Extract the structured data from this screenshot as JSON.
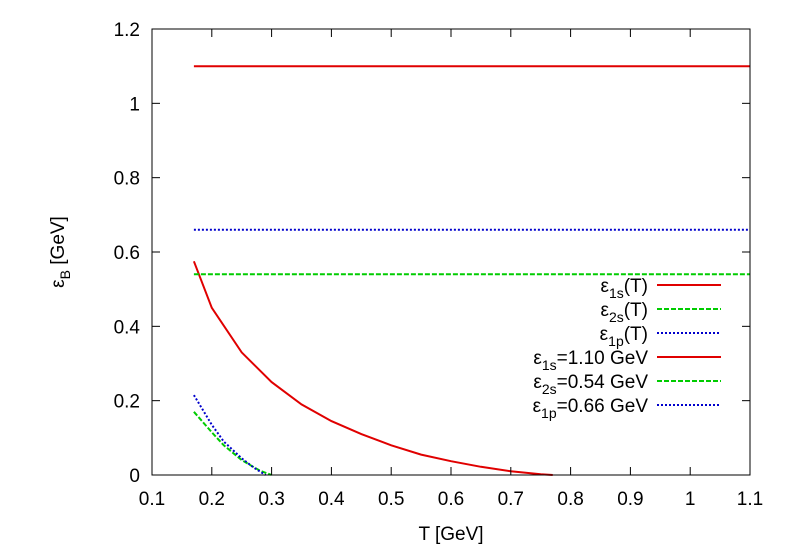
{
  "chart_data": {
    "type": "line",
    "xlabel": "T [GeV]",
    "ylabel": {
      "main": "ε",
      "sub": "B",
      "rest": " [GeV]"
    },
    "xlim": [
      0.1,
      1.1
    ],
    "ylim": [
      0,
      1.2
    ],
    "x_ticks": [
      "0.1",
      "0.2",
      "0.3",
      "0.4",
      "0.5",
      "0.6",
      "0.7",
      "0.8",
      "0.9",
      "1",
      "1.1"
    ],
    "y_ticks": [
      "0",
      "0.2",
      "0.4",
      "0.6",
      "0.8",
      "1",
      "1.2"
    ],
    "grid": false,
    "legend_position": "lower-right",
    "series": [
      {
        "name": {
          "main": "ε",
          "sub": "1s",
          "rest": "(T)"
        },
        "color": "#e00000",
        "style": "solid",
        "x": [
          0.17,
          0.2,
          0.25,
          0.3,
          0.35,
          0.4,
          0.45,
          0.5,
          0.55,
          0.6,
          0.65,
          0.7,
          0.75,
          0.77
        ],
        "y": [
          0.575,
          0.45,
          0.33,
          0.25,
          0.19,
          0.145,
          0.11,
          0.08,
          0.055,
          0.037,
          0.022,
          0.01,
          0.002,
          0.0
        ]
      },
      {
        "name": {
          "main": "ε",
          "sub": "2s",
          "rest": "(T)"
        },
        "color": "#00cc00",
        "style": "dashed",
        "x": [
          0.17,
          0.2,
          0.22,
          0.25,
          0.28,
          0.3
        ],
        "y": [
          0.17,
          0.115,
          0.08,
          0.04,
          0.012,
          0.0
        ]
      },
      {
        "name": {
          "main": "ε",
          "sub": "1p",
          "rest": "(T)"
        },
        "color": "#0000cc",
        "style": "dotted",
        "x": [
          0.17,
          0.2,
          0.22,
          0.25,
          0.27,
          0.29
        ],
        "y": [
          0.215,
          0.135,
          0.09,
          0.045,
          0.02,
          0.0
        ]
      },
      {
        "name": {
          "main": "ε",
          "sub": "1s",
          "rest": "=1.10 GeV"
        },
        "color": "#e00000",
        "style": "solid",
        "x": [
          0.17,
          1.1
        ],
        "y": [
          1.1,
          1.1
        ]
      },
      {
        "name": {
          "main": "ε",
          "sub": "2s",
          "rest": "=0.54 GeV"
        },
        "color": "#00cc00",
        "style": "dashed",
        "x": [
          0.17,
          1.1
        ],
        "y": [
          0.54,
          0.54
        ]
      },
      {
        "name": {
          "main": "ε",
          "sub": "1p",
          "rest": "=0.66 GeV"
        },
        "color": "#0000cc",
        "style": "dotted",
        "x": [
          0.17,
          1.1
        ],
        "y": [
          0.66,
          0.66
        ]
      }
    ]
  }
}
